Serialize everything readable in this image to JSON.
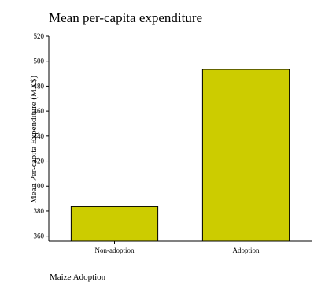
{
  "chart_data": {
    "type": "bar",
    "title": "Mean per-capita expenditure",
    "ylabel": "Mean Per-capita Expenditure (MX$)",
    "xlabel": "",
    "categories": [
      "Non-adoption",
      "Adoption"
    ],
    "values": [
      383.5,
      493.5
    ],
    "ylim": [
      356,
      520
    ],
    "yticks": [
      360,
      380,
      400,
      420,
      440,
      460,
      480,
      500,
      520
    ],
    "bar_color": "#cccc00",
    "bar_edge_color": "#000000",
    "grid": false,
    "legend": "none"
  },
  "footnote": "Maize Adoption"
}
